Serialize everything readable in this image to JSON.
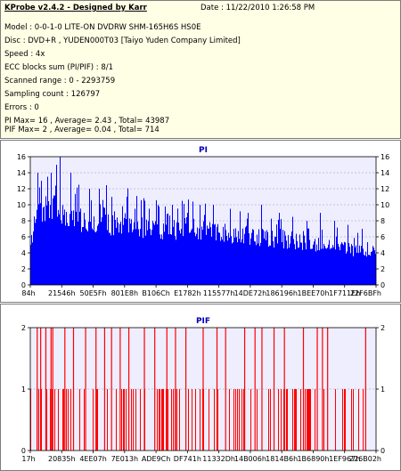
{
  "info": {
    "title": "KProbe v2.4.2 - Designed by Karr",
    "date": "Date : 11/22/2010 1:26:58 PM",
    "lines": [
      "Model : 0-0-1-0 LITE-ON DVDRW SHM-165H6S HS0E",
      "Disc : DVD+R , YUDEN000T03 [Taiyo Yuden Company Limited]",
      "Speed : 4x",
      "ECC blocks sum (PI/PIF) : 8/1",
      "Scanned range : 0 - 2293759",
      "Sampling count : 126797",
      "Errors : 0",
      "PI Max= 16 , Average= 2.43 , Total= 43987",
      "PIF Max= 2 , Average= 0.04 , Total= 714"
    ]
  },
  "colors": {
    "info_bg": "#ffffe6",
    "plot_bg": "#eeeeff",
    "pi_series": "#0000ff",
    "pif_series": "#ff0000",
    "title_text": "#0000b4"
  },
  "chart_data": [
    {
      "type": "bar",
      "title": "PI",
      "ylim": [
        0,
        16
      ],
      "yticks": [
        0,
        2,
        4,
        6,
        8,
        10,
        12,
        14,
        16
      ],
      "xlabels": [
        "84h",
        "21546h",
        "50E5Fh",
        "801E8h",
        "B106Ch",
        "E1782h",
        "115577h",
        "14DE72h",
        "186196h",
        "1BEE70h",
        "1F711Eh",
        "22F6BFh"
      ],
      "grid": true,
      "legend": "none",
      "series_name": "",
      "profile": [
        [
          0,
          6.0
        ],
        [
          0.02,
          9.5
        ],
        [
          0.05,
          10.5
        ],
        [
          0.1,
          9.0
        ],
        [
          0.16,
          8.6
        ],
        [
          0.25,
          8.0
        ],
        [
          0.35,
          7.6
        ],
        [
          0.5,
          7.2
        ],
        [
          0.62,
          6.7
        ],
        [
          0.75,
          5.9
        ],
        [
          0.86,
          5.3
        ],
        [
          0.93,
          4.8
        ],
        [
          1.0,
          4.6
        ]
      ],
      "peaks": [
        [
          0.085,
          16
        ],
        [
          0.075,
          15
        ],
        [
          0.06,
          14
        ],
        [
          0.115,
          14
        ],
        [
          0.05,
          13.5
        ],
        [
          0.03,
          13
        ],
        [
          0.02,
          14
        ],
        [
          0.14,
          12.5
        ],
        [
          0.17,
          12
        ],
        [
          0.2,
          12
        ],
        [
          0.235,
          11
        ],
        [
          0.28,
          11
        ],
        [
          0.33,
          10.5
        ],
        [
          0.37,
          10
        ],
        [
          0.41,
          10
        ],
        [
          0.44,
          10.5
        ],
        [
          0.49,
          10
        ],
        [
          0.53,
          10
        ],
        [
          0.58,
          9.5
        ],
        [
          0.63,
          9
        ],
        [
          0.67,
          10
        ],
        [
          0.72,
          9
        ],
        [
          0.76,
          8.5
        ],
        [
          0.8,
          8
        ],
        [
          0.84,
          9
        ],
        [
          0.88,
          8
        ],
        [
          0.92,
          7.5
        ],
        [
          0.96,
          7
        ]
      ]
    },
    {
      "type": "bar",
      "title": "PIF",
      "ylim": [
        0,
        2
      ],
      "yticks": [
        0,
        1,
        2
      ],
      "xlabels": [
        "17h",
        "20835h",
        "4EE07h",
        "7E013h",
        "ADE9Ch",
        "DF741h",
        "11332Dh",
        "14B006h",
        "1814B6h",
        "1B6890h",
        "1EF967h",
        "226B02h"
      ],
      "grid": true,
      "legend": "none",
      "series_name": "",
      "spikes2": [
        0.02,
        0.03,
        0.045,
        0.06,
        0.065,
        0.1,
        0.125,
        0.16,
        0.19,
        0.215,
        0.235,
        0.26,
        0.285,
        0.33,
        0.36,
        0.395,
        0.42,
        0.45,
        0.5,
        0.54,
        0.565,
        0.62,
        0.65,
        0.67,
        0.705,
        0.735,
        0.79,
        0.83,
        0.845,
        0.86,
        0.97
      ],
      "spike1_density": 0.42
    }
  ]
}
